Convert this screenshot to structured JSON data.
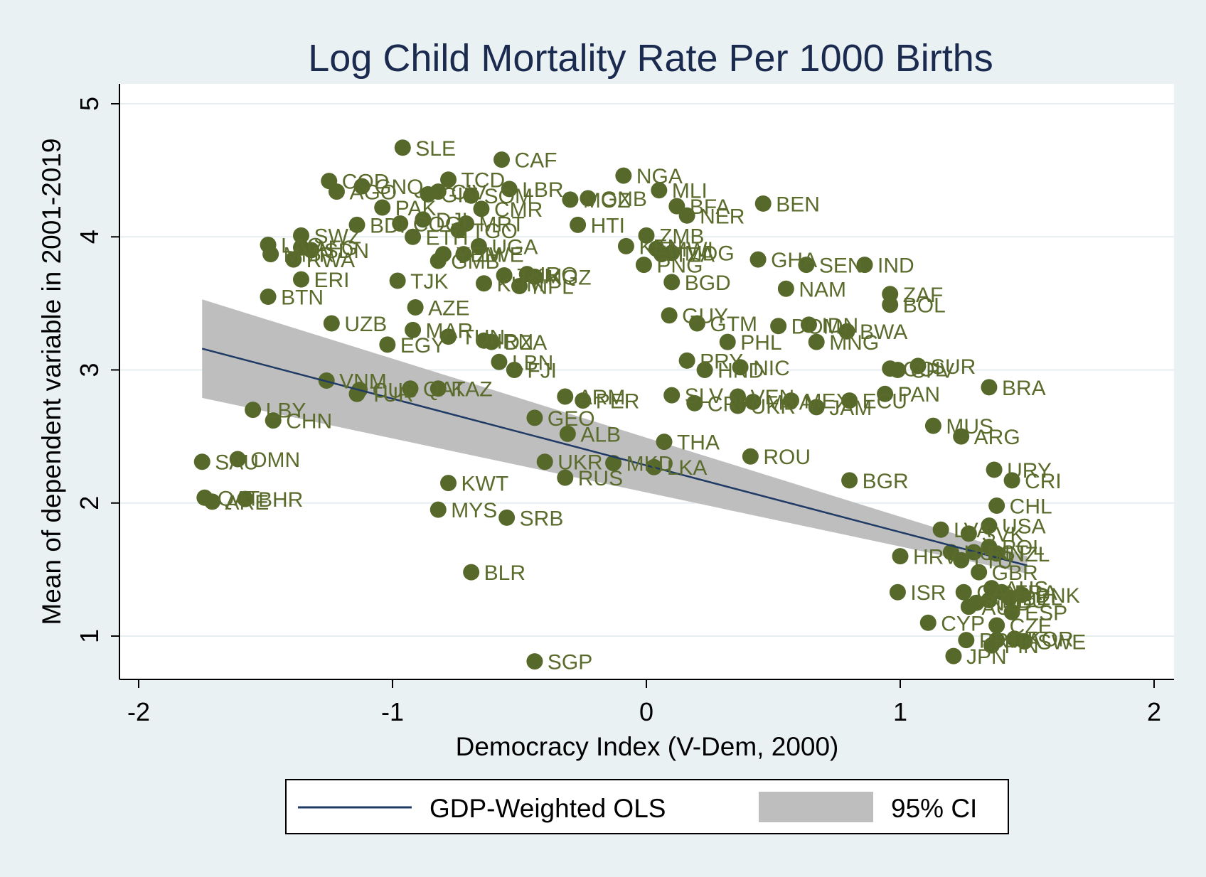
{
  "chart_data": {
    "type": "scatter",
    "title": "Log Child Mortality Rate Per 1000 Births",
    "xlabel": "Democracy Index (V-Dem, 2000)",
    "ylabel": "Mean of dependent variable in 2001-2019",
    "xlim": [
      -2,
      2
    ],
    "ylim": [
      0.7,
      5
    ],
    "xticks": [
      "-2",
      "-1",
      "0",
      "1",
      "2"
    ],
    "yticks": [
      "1",
      "2",
      "3",
      "4",
      "5"
    ],
    "grid": "horizontal",
    "legend_position": "bottom",
    "legend": {
      "line_label": "GDP-Weighted OLS",
      "band_label": "95% CI"
    },
    "colors": {
      "points": "#56692a",
      "fit_line": "#1f3a64",
      "ci_band": "#bebebe",
      "title": "#1b2a4f",
      "plot_background": "#ffffff",
      "outer_background": "#eaf1f3",
      "grid": "#e6eef0"
    },
    "fit_line": {
      "x": [
        -1.75,
        1.5
      ],
      "y": [
        3.16,
        1.53
      ]
    },
    "ci_band": {
      "x": [
        -1.75,
        1.5
      ],
      "upper": [
        3.53,
        1.6
      ],
      "lower": [
        2.79,
        1.47
      ]
    },
    "points": [
      {
        "label": "SLE",
        "x": -0.96,
        "y": 4.67
      },
      {
        "label": "CAF",
        "x": -0.57,
        "y": 4.58
      },
      {
        "label": "NGA",
        "x": -0.09,
        "y": 4.46
      },
      {
        "label": "COD",
        "x": -1.25,
        "y": 4.42
      },
      {
        "label": "TCD",
        "x": -0.78,
        "y": 4.43
      },
      {
        "label": "AGO",
        "x": -1.22,
        "y": 4.34
      },
      {
        "label": "GNQ",
        "x": -1.12,
        "y": 4.38
      },
      {
        "label": "GIN",
        "x": -0.86,
        "y": 4.32
      },
      {
        "label": "CIV",
        "x": -0.82,
        "y": 4.34
      },
      {
        "label": "SOM",
        "x": -0.69,
        "y": 4.31
      },
      {
        "label": "LBR",
        "x": -0.54,
        "y": 4.36
      },
      {
        "label": "MOZ",
        "x": -0.3,
        "y": 4.28
      },
      {
        "label": "GNB",
        "x": -0.23,
        "y": 4.29
      },
      {
        "label": "MLI",
        "x": 0.05,
        "y": 4.35
      },
      {
        "label": "BFA",
        "x": 0.12,
        "y": 4.23
      },
      {
        "label": "NER",
        "x": 0.16,
        "y": 4.16
      },
      {
        "label": "BEN",
        "x": 0.46,
        "y": 4.25
      },
      {
        "label": "PAK",
        "x": -1.04,
        "y": 4.22
      },
      {
        "label": "CMR",
        "x": -0.65,
        "y": 4.21
      },
      {
        "label": "BDI",
        "x": -1.14,
        "y": 4.09
      },
      {
        "label": "COG",
        "x": -0.97,
        "y": 4.1
      },
      {
        "label": "DJI",
        "x": -0.88,
        "y": 4.13
      },
      {
        "label": "MRT",
        "x": -0.71,
        "y": 4.1
      },
      {
        "label": "TGO",
        "x": -0.74,
        "y": 4.05
      },
      {
        "label": "HTI",
        "x": -0.27,
        "y": 4.09
      },
      {
        "label": "ZMB",
        "x": 0.0,
        "y": 4.01
      },
      {
        "label": "SWZ",
        "x": -1.36,
        "y": 4.01
      },
      {
        "label": "ETH",
        "x": -0.92,
        "y": 4.0
      },
      {
        "label": "LAO",
        "x": -1.49,
        "y": 3.94
      },
      {
        "label": "AFG",
        "x": -1.36,
        "y": 3.92
      },
      {
        "label": "SDN",
        "x": -1.32,
        "y": 3.9
      },
      {
        "label": "MMR",
        "x": -1.48,
        "y": 3.87
      },
      {
        "label": "UGA",
        "x": -0.66,
        "y": 3.93
      },
      {
        "label": "KEN",
        "x": -0.08,
        "y": 3.93
      },
      {
        "label": "MWI",
        "x": 0.04,
        "y": 3.91
      },
      {
        "label": "TZA",
        "x": 0.06,
        "y": 3.87
      },
      {
        "label": "MDG",
        "x": 0.1,
        "y": 3.88
      },
      {
        "label": "ZWE",
        "x": -0.72,
        "y": 3.87
      },
      {
        "label": "YEM",
        "x": -0.8,
        "y": 3.87
      },
      {
        "label": "GMB",
        "x": -0.82,
        "y": 3.82
      },
      {
        "label": "GHA",
        "x": 0.44,
        "y": 3.83
      },
      {
        "label": "SEN",
        "x": 0.63,
        "y": 3.79
      },
      {
        "label": "IND",
        "x": 0.86,
        "y": 3.79
      },
      {
        "label": "RWA",
        "x": -1.39,
        "y": 3.83
      },
      {
        "label": "PNG",
        "x": -0.01,
        "y": 3.79
      },
      {
        "label": "TJK",
        "x": -0.98,
        "y": 3.67
      },
      {
        "label": "ERI",
        "x": -1.36,
        "y": 3.68
      },
      {
        "label": "TKM",
        "x": -0.56,
        "y": 3.71
      },
      {
        "label": "KHM",
        "x": -0.64,
        "y": 3.65
      },
      {
        "label": "NPL",
        "x": -0.5,
        "y": 3.63
      },
      {
        "label": "IRQ",
        "x": -0.47,
        "y": 3.72
      },
      {
        "label": "KGZ",
        "x": -0.44,
        "y": 3.7
      },
      {
        "label": "BGD",
        "x": 0.1,
        "y": 3.66
      },
      {
        "label": "NAM",
        "x": 0.55,
        "y": 3.61
      },
      {
        "label": "ZAF",
        "x": 0.96,
        "y": 3.57
      },
      {
        "label": "BOL",
        "x": 0.96,
        "y": 3.49
      },
      {
        "label": "BTN",
        "x": -1.49,
        "y": 3.55
      },
      {
        "label": "AZE",
        "x": -0.91,
        "y": 3.47
      },
      {
        "label": "UZB",
        "x": -1.24,
        "y": 3.35
      },
      {
        "label": "GUY",
        "x": 0.09,
        "y": 3.41
      },
      {
        "label": "GTM",
        "x": 0.2,
        "y": 3.35
      },
      {
        "label": "DOM",
        "x": 0.52,
        "y": 3.33
      },
      {
        "label": "IDN",
        "x": 0.64,
        "y": 3.34
      },
      {
        "label": "BWA",
        "x": 0.79,
        "y": 3.29
      },
      {
        "label": "MNG",
        "x": 0.67,
        "y": 3.21
      },
      {
        "label": "PHL",
        "x": 0.32,
        "y": 3.21
      },
      {
        "label": "MAR",
        "x": -0.92,
        "y": 3.3
      },
      {
        "label": "TUN",
        "x": -0.78,
        "y": 3.25
      },
      {
        "label": "IRN",
        "x": -0.64,
        "y": 3.22
      },
      {
        "label": "EGY",
        "x": -1.02,
        "y": 3.19
      },
      {
        "label": "DZA",
        "x": -0.61,
        "y": 3.21
      },
      {
        "label": "LBN",
        "x": -0.58,
        "y": 3.06
      },
      {
        "label": "FJI",
        "x": -0.52,
        "y": 3.0
      },
      {
        "label": "PRY",
        "x": 0.16,
        "y": 3.07
      },
      {
        "label": "HND",
        "x": 0.23,
        "y": 3.0
      },
      {
        "label": "NIC",
        "x": 0.37,
        "y": 3.02
      },
      {
        "label": "COL",
        "x": 0.96,
        "y": 3.01
      },
      {
        "label": "CPV",
        "x": 0.99,
        "y": 3.0
      },
      {
        "label": "SUR",
        "x": 1.07,
        "y": 3.03
      },
      {
        "label": "BRA",
        "x": 1.35,
        "y": 2.87
      },
      {
        "label": "VNM",
        "x": -1.26,
        "y": 2.92
      },
      {
        "label": "CUB",
        "x": -1.13,
        "y": 2.85
      },
      {
        "label": "TUR",
        "x": -1.14,
        "y": 2.82
      },
      {
        "label": "QAT",
        "x": -0.93,
        "y": 2.86
      },
      {
        "label": "KAZ",
        "x": -0.82,
        "y": 2.86
      },
      {
        "label": "ARM",
        "x": -0.32,
        "y": 2.8
      },
      {
        "label": "PER",
        "x": -0.25,
        "y": 2.77
      },
      {
        "label": "SLV",
        "x": 0.1,
        "y": 2.81
      },
      {
        "label": "VEN",
        "x": 0.36,
        "y": 2.8
      },
      {
        "label": "MEX",
        "x": 0.57,
        "y": 2.77
      },
      {
        "label": "CRI",
        "x": 0.19,
        "y": 2.75
      },
      {
        "label": "UKR",
        "x": 0.36,
        "y": 2.73
      },
      {
        "label": "MDA",
        "x": 0.42,
        "y": 2.76
      },
      {
        "label": "JAM",
        "x": 0.67,
        "y": 2.72
      },
      {
        "label": "ECU",
        "x": 0.8,
        "y": 2.77
      },
      {
        "label": "PAN",
        "x": 0.94,
        "y": 2.82
      },
      {
        "label": "LBY",
        "x": -1.55,
        "y": 2.7
      },
      {
        "label": "CHN",
        "x": -1.47,
        "y": 2.62
      },
      {
        "label": "GEO",
        "x": -0.44,
        "y": 2.64
      },
      {
        "label": "ALB",
        "x": -0.31,
        "y": 2.52
      },
      {
        "label": "THA",
        "x": 0.07,
        "y": 2.46
      },
      {
        "label": "MUS",
        "x": 1.13,
        "y": 2.58
      },
      {
        "label": "ARG",
        "x": 1.24,
        "y": 2.5
      },
      {
        "label": "SAU",
        "x": -1.75,
        "y": 2.31
      },
      {
        "label": "OMN",
        "x": -1.61,
        "y": 2.33
      },
      {
        "label": "UKR",
        "x": -0.4,
        "y": 2.31
      },
      {
        "label": "MKD",
        "x": -0.13,
        "y": 2.3
      },
      {
        "label": "LKA",
        "x": 0.03,
        "y": 2.27
      },
      {
        "label": "ROU",
        "x": 0.41,
        "y": 2.35
      },
      {
        "label": "KWT",
        "x": -0.78,
        "y": 2.15
      },
      {
        "label": "RUS",
        "x": -0.32,
        "y": 2.19
      },
      {
        "label": "BGR",
        "x": 0.8,
        "y": 2.17
      },
      {
        "label": "URY",
        "x": 1.37,
        "y": 2.25
      },
      {
        "label": "CRI",
        "x": 1.44,
        "y": 2.17
      },
      {
        "label": "QAT",
        "x": -1.74,
        "y": 2.04
      },
      {
        "label": "ARE",
        "x": -1.71,
        "y": 2.01
      },
      {
        "label": "BHR",
        "x": -1.58,
        "y": 2.03
      },
      {
        "label": "MYS",
        "x": -0.82,
        "y": 1.95
      },
      {
        "label": "SRB",
        "x": -0.55,
        "y": 1.89
      },
      {
        "label": "CHL",
        "x": 1.38,
        "y": 1.98
      },
      {
        "label": "LVA",
        "x": 1.16,
        "y": 1.8
      },
      {
        "label": "USA",
        "x": 1.35,
        "y": 1.83
      },
      {
        "label": "SVK",
        "x": 1.27,
        "y": 1.77
      },
      {
        "label": "POL",
        "x": 1.35,
        "y": 1.67
      },
      {
        "label": "HUN",
        "x": 1.2,
        "y": 1.63
      },
      {
        "label": "EST",
        "x": 1.29,
        "y": 1.63
      },
      {
        "label": "NZL",
        "x": 1.38,
        "y": 1.62
      },
      {
        "label": "LTU",
        "x": 1.24,
        "y": 1.57
      },
      {
        "label": "HRV",
        "x": 1.0,
        "y": 1.6
      },
      {
        "label": "GBR",
        "x": 1.31,
        "y": 1.48
      },
      {
        "label": "BLR",
        "x": -0.69,
        "y": 1.48
      },
      {
        "label": "ISR",
        "x": 0.99,
        "y": 1.33
      },
      {
        "label": "CAN",
        "x": 1.25,
        "y": 1.33
      },
      {
        "label": "AUS",
        "x": 1.36,
        "y": 1.36
      },
      {
        "label": "FRA",
        "x": 1.4,
        "y": 1.33
      },
      {
        "label": "BEL",
        "x": 1.43,
        "y": 1.29
      },
      {
        "label": "DNK",
        "x": 1.48,
        "y": 1.31
      },
      {
        "label": "NLD",
        "x": 1.3,
        "y": 1.25
      },
      {
        "label": "DEU",
        "x": 1.35,
        "y": 1.27
      },
      {
        "label": "AUT",
        "x": 1.27,
        "y": 1.22
      },
      {
        "label": "ESP",
        "x": 1.44,
        "y": 1.18
      },
      {
        "label": "CYP",
        "x": 1.11,
        "y": 1.1
      },
      {
        "label": "CZE",
        "x": 1.38,
        "y": 1.08
      },
      {
        "label": "PRT",
        "x": 1.26,
        "y": 0.97
      },
      {
        "label": "ITA",
        "x": 1.38,
        "y": 0.97
      },
      {
        "label": "KOR",
        "x": 1.45,
        "y": 0.98
      },
      {
        "label": "FIN",
        "x": 1.36,
        "y": 0.93
      },
      {
        "label": "SWE",
        "x": 1.49,
        "y": 0.96
      },
      {
        "label": "JPN",
        "x": 1.21,
        "y": 0.85
      },
      {
        "label": "SGP",
        "x": -0.44,
        "y": 0.81
      }
    ]
  }
}
